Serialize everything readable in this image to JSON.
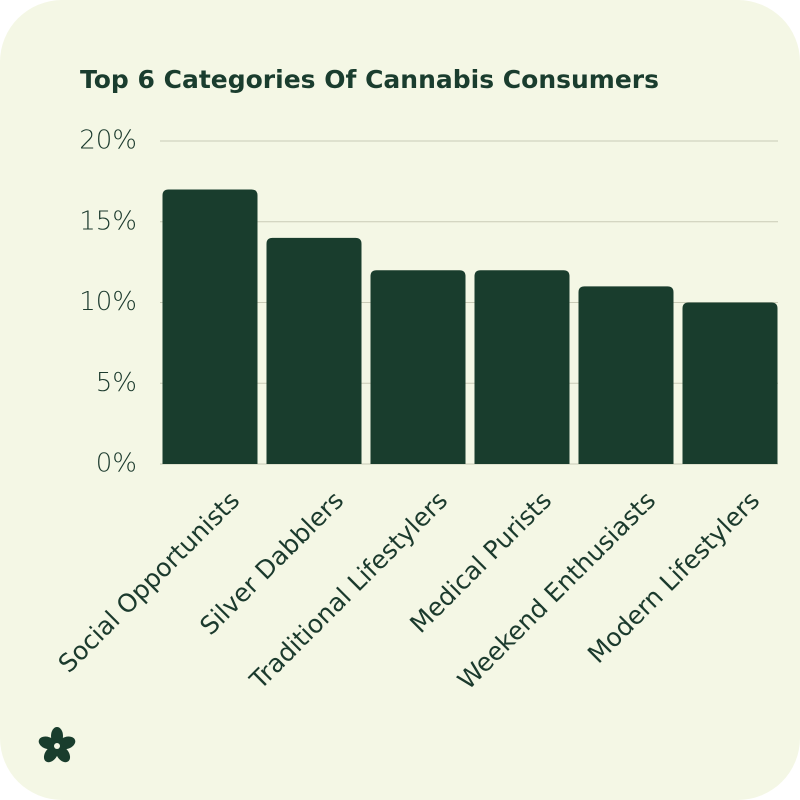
{
  "chart_data": {
    "type": "bar",
    "title": "Top 6 Categories Of Cannabis Consumers",
    "categories": [
      "Social Opportunists",
      "Silver Dabblers",
      "Traditional Lifestylers",
      "Medical Purists",
      "Weekend Enthusiasts",
      "Modern Lifestylers"
    ],
    "values": [
      17,
      14,
      12,
      12,
      11,
      10
    ],
    "color": "#193d2d",
    "ylim": [
      0,
      20
    ],
    "yticks": [
      {
        "value": 0,
        "label": "0%"
      },
      {
        "value": 5,
        "label": "5%"
      },
      {
        "value": 10,
        "label": "10%"
      },
      {
        "value": 15,
        "label": "15%"
      },
      {
        "value": 20,
        "label": "20%"
      }
    ],
    "grid": true
  }
}
